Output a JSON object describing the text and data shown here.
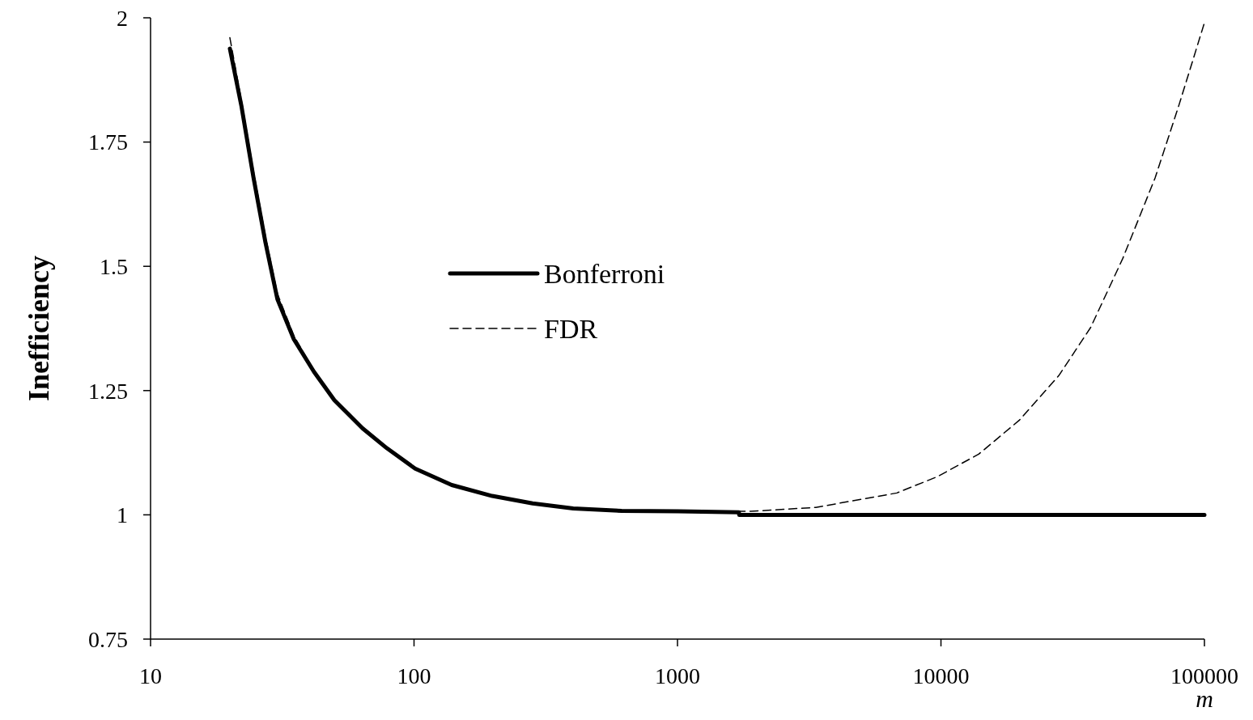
{
  "chart_data": {
    "type": "line",
    "xlabel": "m",
    "ylabel": "Inefficiency",
    "log": "x",
    "xlim": [
      10,
      100000
    ],
    "xticks": [
      10,
      100,
      1000,
      10000,
      100000
    ],
    "ylim": [
      0.75,
      2
    ],
    "yticks": [
      0.75,
      1,
      1.25,
      1.5,
      1.75,
      2
    ],
    "grid": false,
    "legend": "left",
    "marker": "none",
    "series": [
      {
        "name": "Bonferroni",
        "color": "#000000",
        "line_style": "solid",
        "x": [
          20,
          22.1,
          24.6,
          27.3,
          30.3,
          35,
          41.7,
          49.8,
          63.8,
          78.9,
          101,
          139,
          198,
          282,
          402,
          614,
          1003,
          1710,
          1715,
          100000
        ],
        "values": [
          1.938,
          1.824,
          1.678,
          1.548,
          1.434,
          1.353,
          1.288,
          1.231,
          1.174,
          1.134,
          1.093,
          1.06,
          1.038,
          1.023,
          1.013,
          1.008,
          1.007,
          1.005,
          1.0,
          1.0
        ]
      },
      {
        "name": "FDR",
        "color": "#000000",
        "line_style": "dashed",
        "x": [
          20,
          22.1,
          24.6,
          27.3,
          30.3,
          35,
          41.7,
          49.8,
          63.8,
          78.9,
          101,
          139,
          198,
          282,
          402,
          614,
          1003,
          1900,
          3350,
          6800,
          9700,
          13900,
          19800,
          28000,
          37000,
          49000,
          65000,
          80000,
          100000
        ],
        "values": [
          1.96,
          1.835,
          1.69,
          1.56,
          1.445,
          1.36,
          1.29,
          1.232,
          1.174,
          1.134,
          1.093,
          1.06,
          1.038,
          1.023,
          1.013,
          1.008,
          1.007,
          1.007,
          1.015,
          1.044,
          1.077,
          1.122,
          1.19,
          1.28,
          1.377,
          1.516,
          1.678,
          1.824,
          1.99
        ]
      }
    ]
  }
}
